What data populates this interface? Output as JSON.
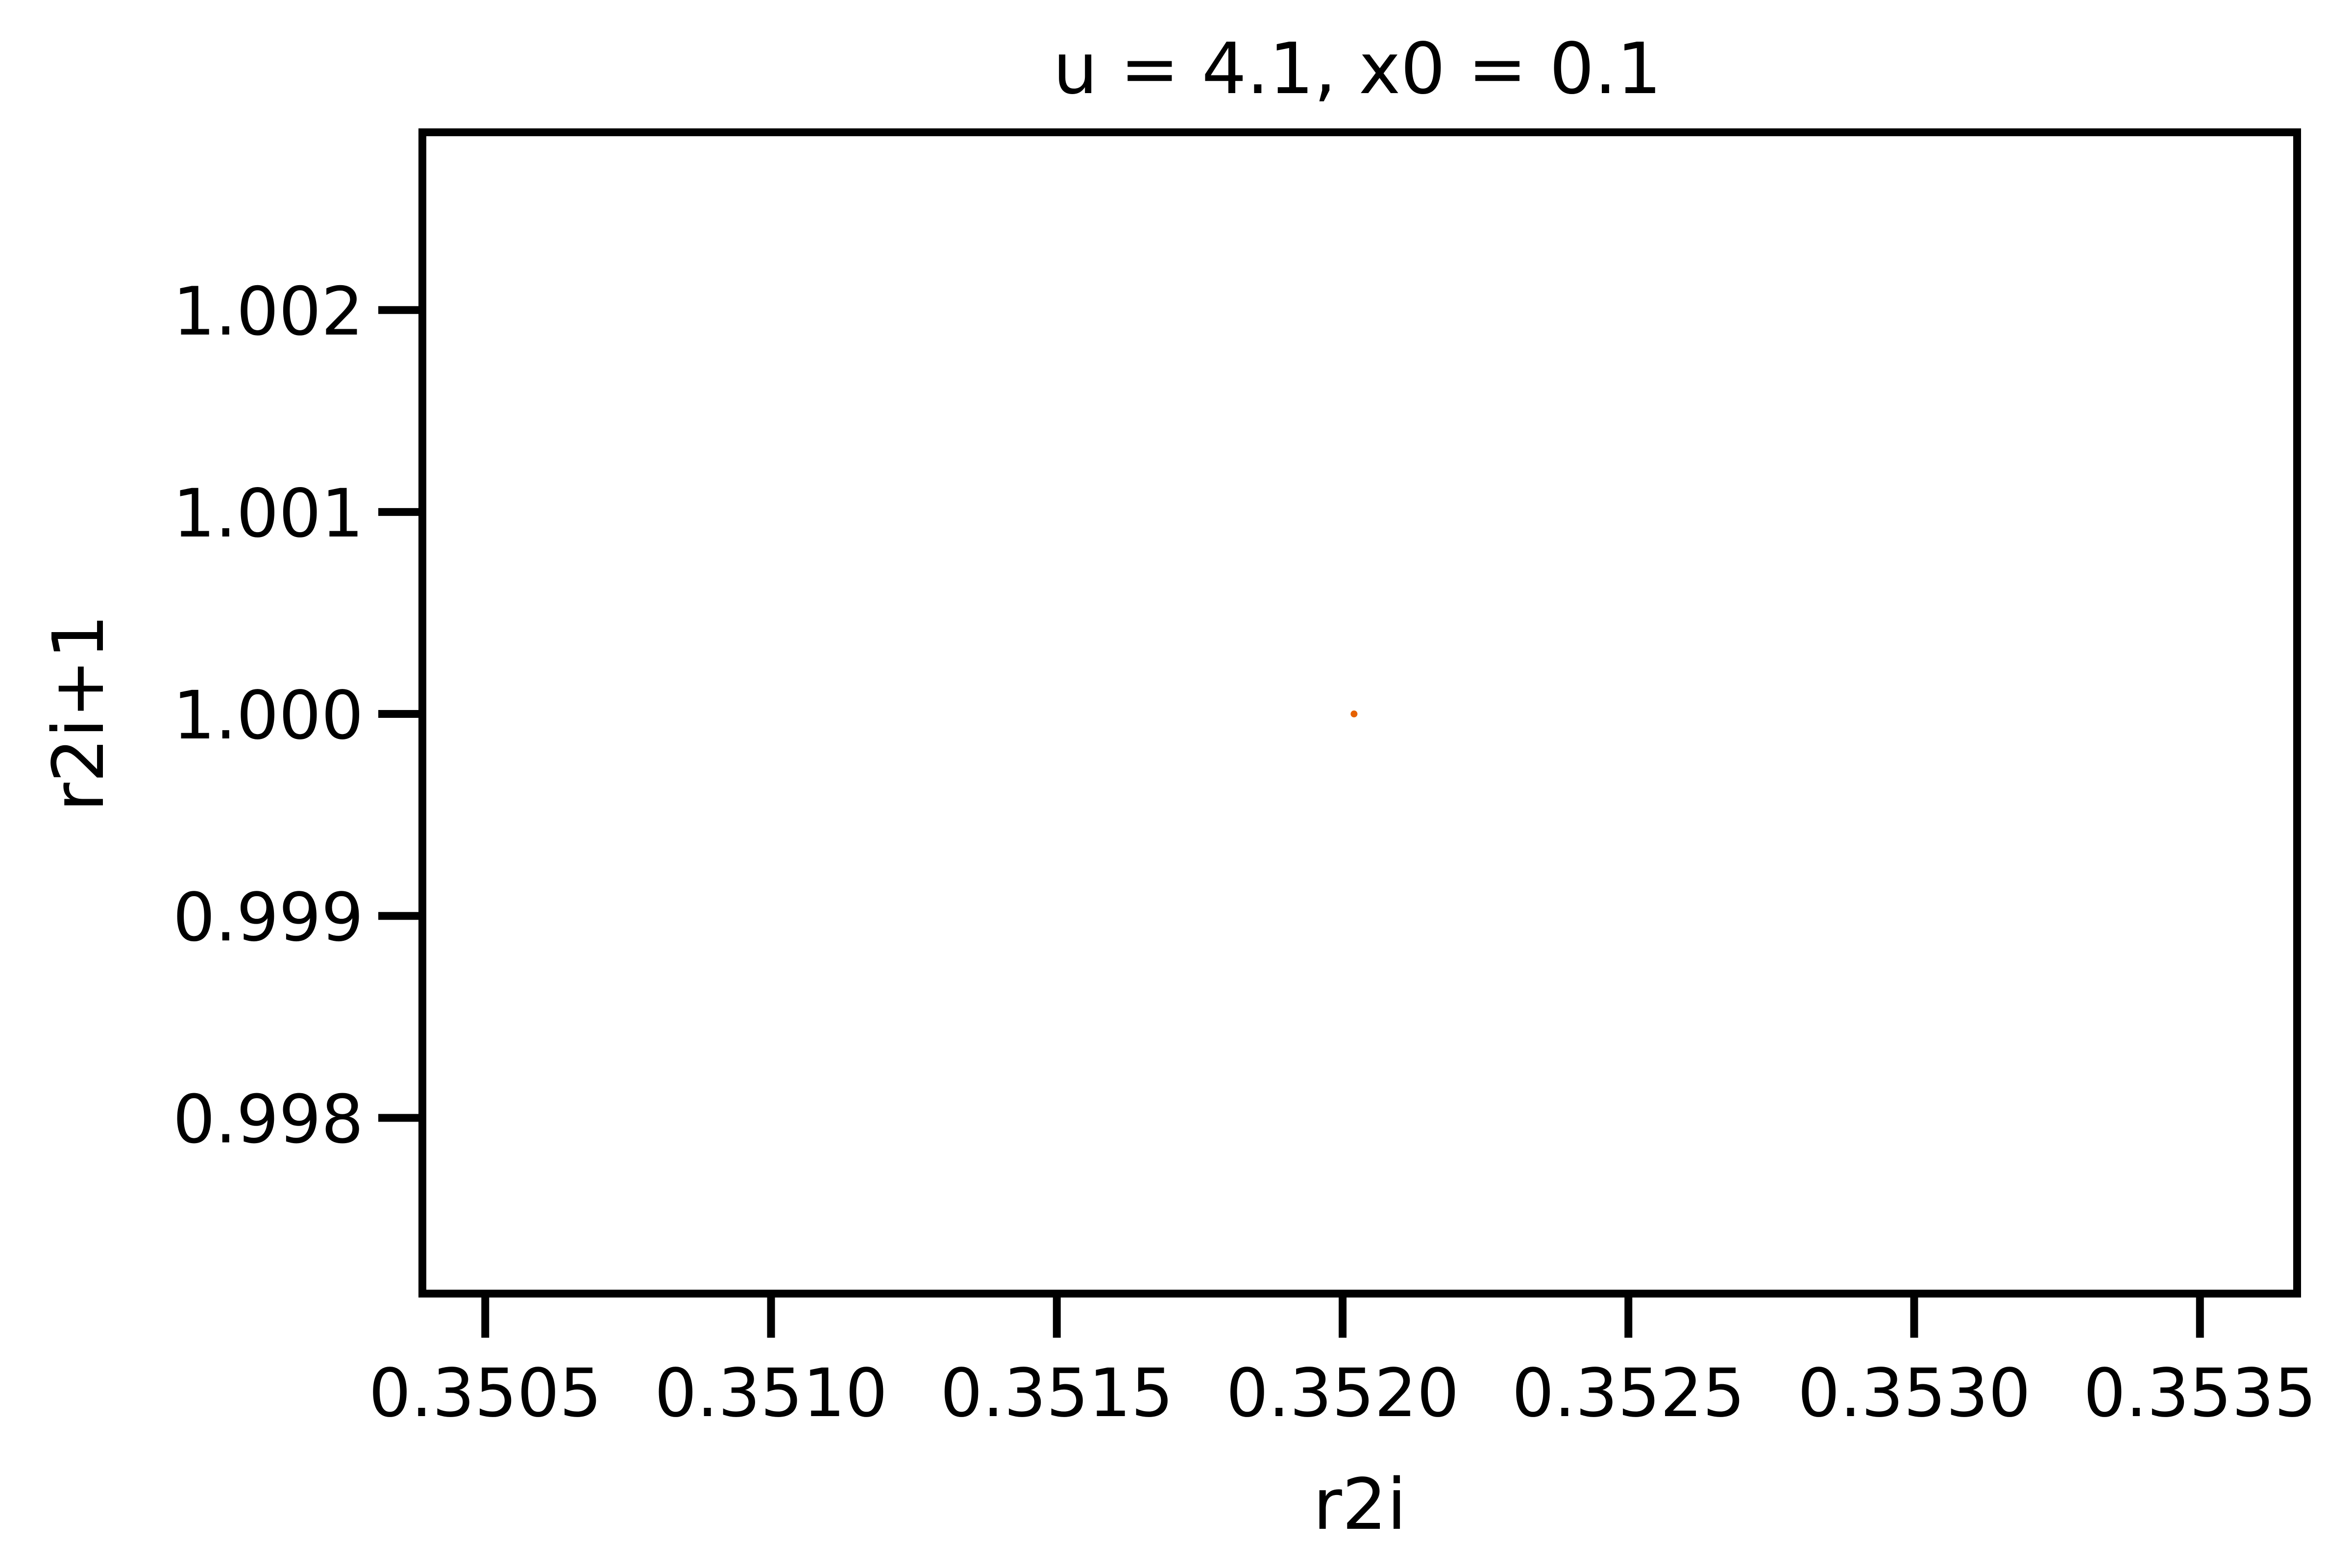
{
  "chart_data": {
    "type": "scatter",
    "title": "u = 4.1, x0 = 0.1",
    "xlabel": "r2i",
    "ylabel": "r2i+1",
    "xlim": [
      0.35039,
      0.35367
    ],
    "ylim": [
      0.99713,
      1.00288
    ],
    "x_ticks": [
      0.3505,
      0.351,
      0.3515,
      0.352,
      0.3525,
      0.353,
      0.3535
    ],
    "x_tick_labels": [
      "0.3505",
      "0.3510",
      "0.3515",
      "0.3520",
      "0.3525",
      "0.3530",
      "0.3535"
    ],
    "y_ticks": [
      0.998,
      0.999,
      1.0,
      1.001,
      1.002
    ],
    "y_tick_labels": [
      "0.998",
      "0.999",
      "1.000",
      "1.001",
      "1.002"
    ],
    "grid": false,
    "series": [
      {
        "color": "#e66100",
        "points": [
          {
            "x": 0.35202,
            "y": 1.0
          }
        ]
      }
    ]
  }
}
